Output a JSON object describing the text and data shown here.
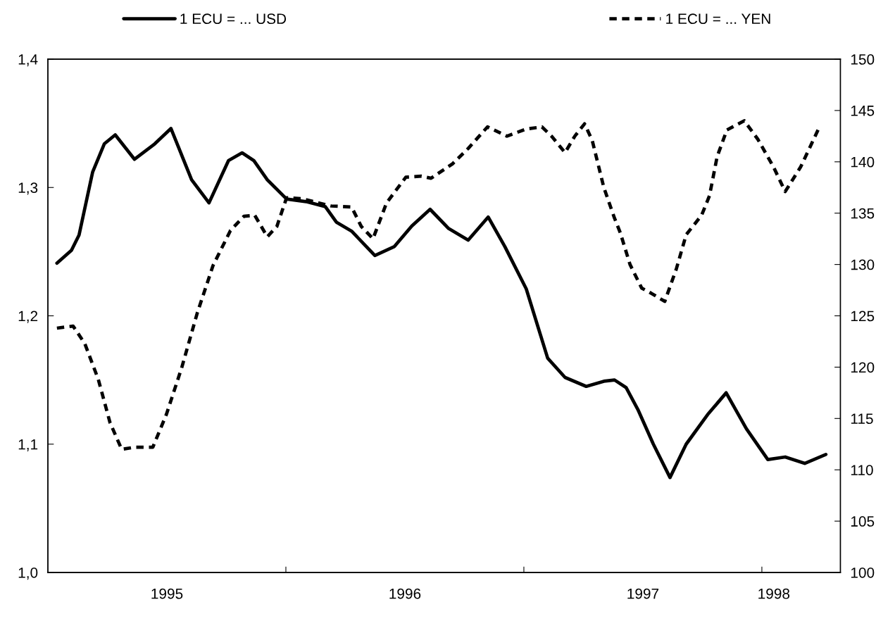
{
  "chart_data": {
    "type": "line",
    "legend": "top",
    "grid": false,
    "xlim": [
      1995.0,
      1998.33
    ],
    "xticks": [
      {
        "value": 1995.5,
        "label": "1995"
      },
      {
        "value": 1996.0,
        "label": null
      },
      {
        "value": 1996.5,
        "label": "1996"
      },
      {
        "value": 1997.0,
        "label": null
      },
      {
        "value": 1997.5,
        "label": "1997"
      },
      {
        "value": 1998.0,
        "label": null
      },
      {
        "value": 1998.05,
        "label": "1998"
      }
    ],
    "ylim": [
      1.0,
      1.4
    ],
    "yticks": [
      {
        "value": 1.0,
        "label": "1,0"
      },
      {
        "value": 1.1,
        "label": "1,1"
      },
      {
        "value": 1.2,
        "label": "1,2"
      },
      {
        "value": 1.3,
        "label": "1,3"
      },
      {
        "value": 1.4,
        "label": "1,4"
      }
    ],
    "y2lim": [
      100,
      150
    ],
    "y2ticks": [
      100,
      105,
      110,
      115,
      120,
      125,
      130,
      135,
      140,
      145,
      150
    ],
    "series": [
      {
        "name": "1 ECU = ... USD",
        "color": "#000000",
        "line_style": "solid",
        "x": [
          1995.038,
          1995.099,
          1995.131,
          1995.188,
          1995.237,
          1995.283,
          1995.364,
          1995.449,
          1995.517,
          1995.604,
          1995.677,
          1995.759,
          1995.816,
          1995.865,
          1995.922,
          1996.003,
          1996.085,
          1996.166,
          1996.212,
          1996.276,
          1996.374,
          1996.456,
          1996.529,
          1996.606,
          1996.684,
          1996.766,
          1996.85,
          1996.92,
          1997.01,
          1997.1,
          1997.173,
          1997.262,
          1997.336,
          1997.381,
          1997.43,
          1997.479,
          1997.544,
          1997.614,
          1997.682,
          1997.772,
          1997.85,
          1997.935,
          1998.025,
          1998.098,
          1998.18,
          1998.269
        ],
        "values": [
          1.241,
          1.251,
          1.263,
          1.312,
          1.334,
          1.341,
          1.322,
          1.334,
          1.346,
          1.306,
          1.288,
          1.321,
          1.327,
          1.321,
          1.306,
          1.291,
          1.289,
          1.285,
          1.273,
          1.266,
          1.247,
          1.254,
          1.27,
          1.283,
          1.268,
          1.259,
          1.277,
          1.254,
          1.221,
          1.167,
          1.152,
          1.145,
          1.149,
          1.15,
          1.144,
          1.127,
          1.1,
          1.074,
          1.1,
          1.123,
          1.14,
          1.112,
          1.088,
          1.09,
          1.085,
          1.092
        ]
      },
      {
        "name": "1 ECU = ... YEN",
        "color": "#000000",
        "line_style": "dashed",
        "axis": "y2",
        "x": [
          1995.038,
          1995.106,
          1995.155,
          1995.212,
          1995.261,
          1995.31,
          1995.367,
          1995.441,
          1995.498,
          1995.563,
          1995.628,
          1995.694,
          1995.767,
          1995.824,
          1995.869,
          1995.922,
          1995.962,
          1996.003,
          1996.068,
          1996.19,
          1996.276,
          1996.317,
          1996.366,
          1996.423,
          1996.504,
          1996.57,
          1996.61,
          1996.7,
          1996.766,
          1996.847,
          1996.929,
          1997.01,
          1997.076,
          1997.116,
          1997.173,
          1997.214,
          1997.255,
          1997.287,
          1997.336,
          1997.381,
          1997.405,
          1997.446,
          1997.495,
          1997.535,
          1997.592,
          1997.641,
          1997.682,
          1997.747,
          1997.78,
          1997.812,
          1997.853,
          1997.926,
          1997.983,
          1998.049,
          1998.098,
          1998.163,
          1998.236
        ],
        "values": [
          123.8,
          124.0,
          122.3,
          118.8,
          114.6,
          112.0,
          112.2,
          112.2,
          115.4,
          120.0,
          125.3,
          129.9,
          133.3,
          134.7,
          134.8,
          132.7,
          133.7,
          136.5,
          136.4,
          135.7,
          135.6,
          133.7,
          132.5,
          136.0,
          138.5,
          138.6,
          138.4,
          139.8,
          141.3,
          143.4,
          142.5,
          143.2,
          143.4,
          142.5,
          140.9,
          142.5,
          143.7,
          142.1,
          137.5,
          134.5,
          133.1,
          130.0,
          127.7,
          127.2,
          126.4,
          129.6,
          132.9,
          134.8,
          136.7,
          140.5,
          143.1,
          144.0,
          142.2,
          139.5,
          137.1,
          139.5,
          143.1
        ]
      }
    ]
  }
}
